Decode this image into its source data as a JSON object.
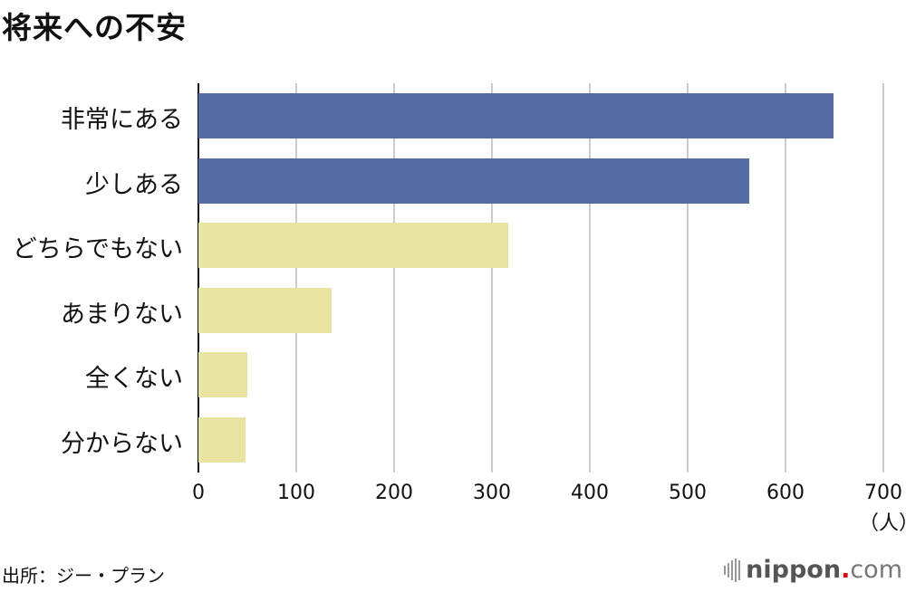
{
  "title": "将来への不安",
  "source": "出所：ジー・プラン",
  "logo": {
    "brand": "nippon",
    "dot": ".",
    "tld": "com"
  },
  "colors": {
    "high": "#566ca5",
    "low": "#e9e4a2",
    "grid": "#cccccc",
    "axis": "#111111",
    "logo_dot": "#e60012"
  },
  "chart_data": {
    "type": "bar",
    "orientation": "horizontal",
    "title": "将来への不安",
    "categories": [
      "非常にある",
      "少しある",
      "どちらでもない",
      "あまりない",
      "全くない",
      "分からない"
    ],
    "values": [
      649,
      563,
      317,
      136,
      50,
      48
    ],
    "bar_colors": [
      "#566ca5",
      "#566ca5",
      "#e9e4a2",
      "#e9e4a2",
      "#e9e4a2",
      "#e9e4a2"
    ],
    "xlabel": "（人）",
    "ylabel": "",
    "xlim": [
      0,
      700
    ],
    "xticks": [
      "0",
      "100",
      "200",
      "300",
      "400",
      "500",
      "600",
      "700"
    ],
    "grid": true,
    "legend": null,
    "source": "出所：ジー・プラン"
  }
}
